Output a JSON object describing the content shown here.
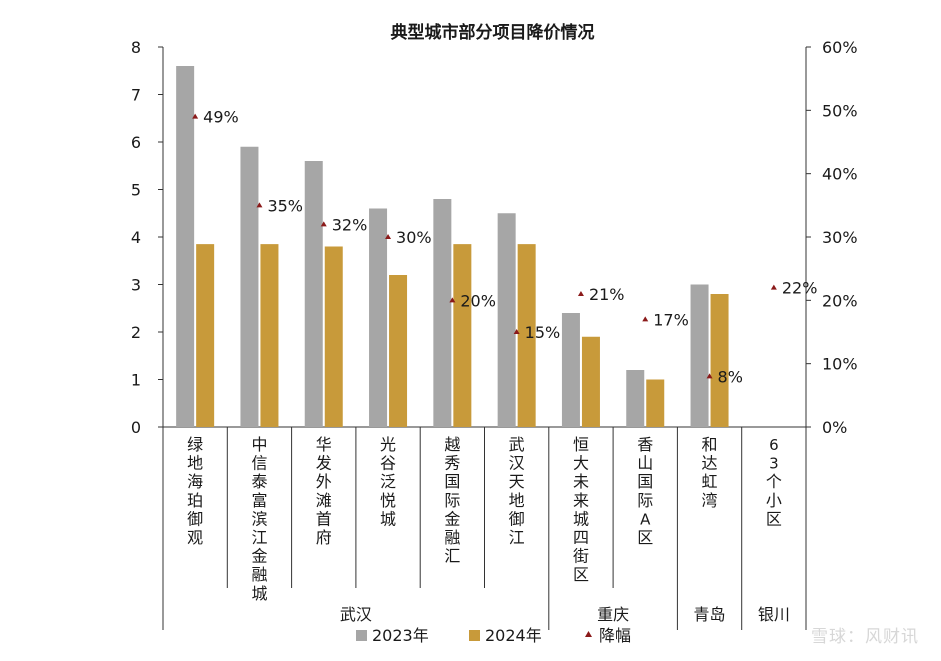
{
  "chart_data": {
    "type": "bar",
    "title": "典型城市部分项目降价情况",
    "categories": [
      "绿地海珀御观",
      "中信泰富滨江金融城",
      "华发外滩首府",
      "光谷泛悦城",
      "越秀国际金融汇",
      "武汉天地御江",
      "恒大未来城四街区",
      "香山国际A区",
      "和达虹湾",
      "63个小区"
    ],
    "city_groups": [
      {
        "name": "武汉",
        "count": 6
      },
      {
        "name": "重庆",
        "count": 2
      },
      {
        "name": "青岛",
        "count": 1
      },
      {
        "name": "银川",
        "count": 1
      }
    ],
    "series": [
      {
        "name": "2023年",
        "type": "bar",
        "axis": "left",
        "color": "#a6a6a6",
        "values": [
          7.6,
          5.9,
          5.6,
          4.6,
          4.8,
          4.5,
          2.4,
          1.2,
          3.0,
          null
        ]
      },
      {
        "name": "2024年",
        "type": "bar",
        "axis": "left",
        "color": "#c89a3a",
        "values": [
          3.85,
          3.85,
          3.8,
          3.2,
          3.85,
          3.85,
          1.9,
          1.0,
          2.8,
          null
        ]
      },
      {
        "name": "降幅",
        "type": "scatter",
        "axis": "right",
        "color": "#8b1a1a",
        "values": [
          49,
          35,
          32,
          30,
          20,
          15,
          21,
          17,
          8,
          22
        ],
        "labels": [
          "49%",
          "35%",
          "32%",
          "30%",
          "20%",
          "15%",
          "21%",
          "17%",
          "8%",
          "22%"
        ]
      }
    ],
    "y_left": {
      "min": 0,
      "max": 8,
      "ticks": [
        "0",
        "1",
        "2",
        "3",
        "4",
        "5",
        "6",
        "7",
        "8"
      ]
    },
    "y_right": {
      "min": 0,
      "max": 60,
      "ticks": [
        "0%",
        "10%",
        "20%",
        "30%",
        "40%",
        "50%",
        "60%"
      ]
    },
    "legend": {
      "position": "bottom",
      "items": [
        "2023年",
        "2024年",
        "降幅"
      ]
    },
    "grid": false
  },
  "watermark": "雪球：风财讯"
}
